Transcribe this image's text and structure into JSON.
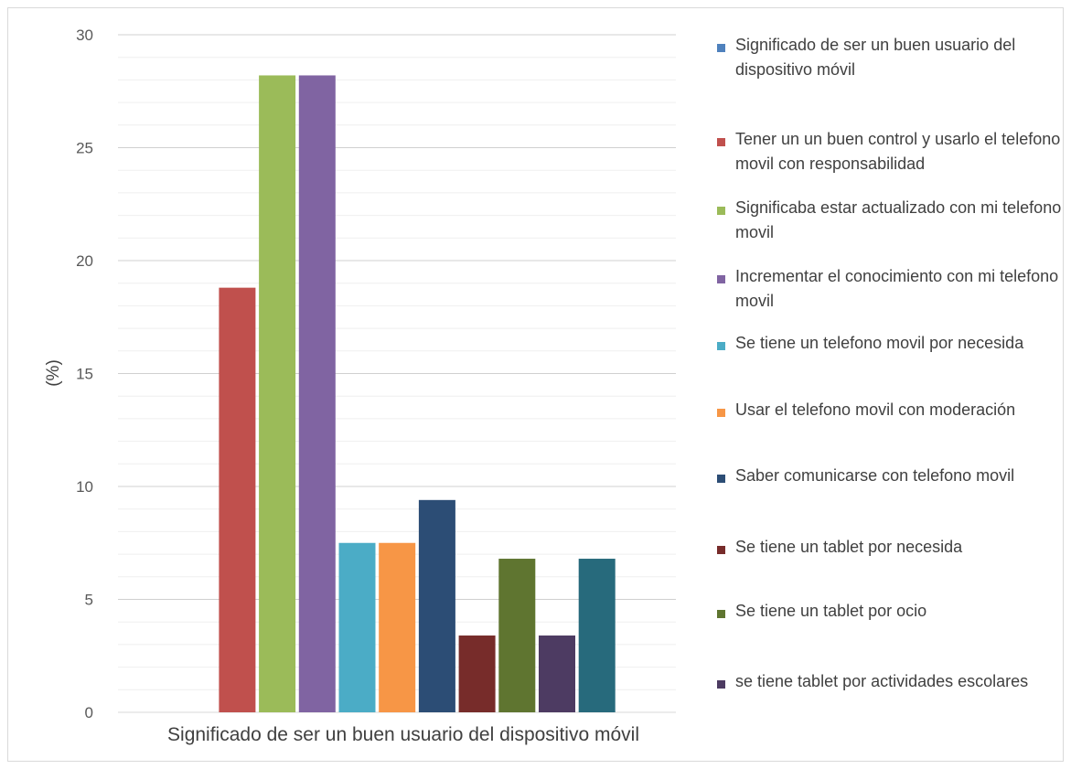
{
  "chart_data": {
    "type": "bar",
    "categories": [
      "Significado de ser un buen usuario del dispositivo móvil"
    ],
    "ylabel": "(%)",
    "xlabel": "",
    "ylim": [
      0,
      30
    ],
    "yticks": [
      "0",
      "5",
      "10",
      "15",
      "20",
      "25",
      "30"
    ],
    "legend_position": "right",
    "grid": true,
    "series": [
      {
        "name": " Significado de ser un buen usuario del dispositivo móvil",
        "value": 0,
        "color": "#4f81bd"
      },
      {
        "name": "Tener un un buen control y usarlo el telefono movil con responsabilidad",
        "value": 18.8,
        "color": "#c0504d"
      },
      {
        "name": "Significaba estar actualizado con mi telefono movil",
        "value": 28.2,
        "color": "#9bbb59"
      },
      {
        "name": "Incrementar el conocimiento con mi telefono movil",
        "value": 28.2,
        "color": "#8064a2"
      },
      {
        "name": "Se tiene un telefono movil por necesida",
        "value": 7.5,
        "color": "#4bacc6"
      },
      {
        "name": "Usar el telefono movil  con moderación",
        "value": 7.5,
        "color": "#f79646"
      },
      {
        "name": "Saber comunicarse con telefono movil",
        "value": 9.4,
        "color": "#2c4d75"
      },
      {
        "name": "Se tiene un tablet por necesida",
        "value": 3.4,
        "color": "#772c2a"
      },
      {
        "name": "Se tiene un tablet por ocio",
        "value": 6.8,
        "color": "#5f7530"
      },
      {
        "name": "se tiene tablet por actividades escolares",
        "value": 3.4,
        "color": "#4d3b62"
      },
      {
        "value": 6.8,
        "color": "#276a7c"
      }
    ]
  }
}
